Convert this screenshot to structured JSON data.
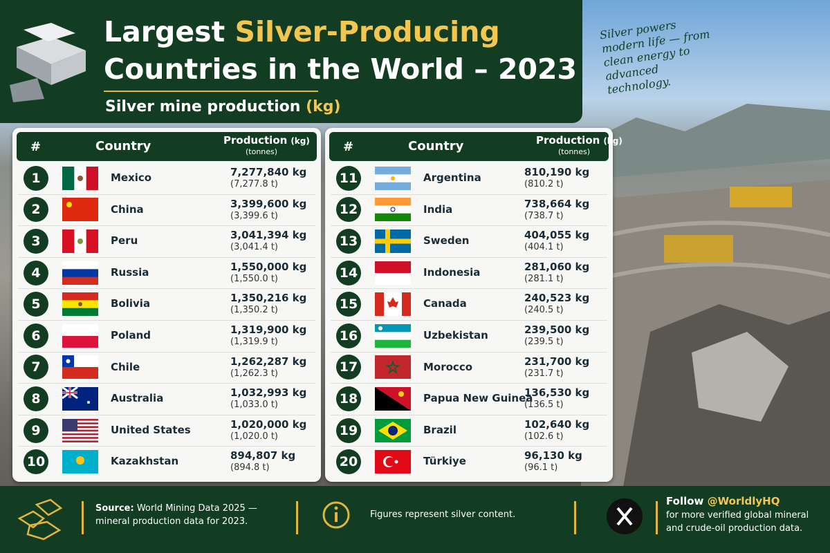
{
  "header": {
    "title_start": "Largest ",
    "title_highlight": "Silver-Producing",
    "title_end": "Countries in the World – 2023",
    "subtitle": "Silver mine production ",
    "subtitle_unit": "(kg)",
    "quote": "Silver powers modern life — from clean energy to advanced technology."
  },
  "tables": [
    {
      "header": {
        "rank": "#",
        "country": "Country",
        "production": "Production",
        "unit": "(kg)",
        "sub": "(tonnes)"
      },
      "rows": [
        {
          "rank": "1",
          "country": "Mexico",
          "kg": "7,277,840 kg",
          "tonnes": "(7,277.8 t)"
        },
        {
          "rank": "2",
          "country": "China",
          "kg": "3,399,600 kg",
          "tonnes": "(3,399.6 t)"
        },
        {
          "rank": "3",
          "country": "Peru",
          "kg": "3,041,394 kg",
          "tonnes": "(3,041.4 t)"
        },
        {
          "rank": "4",
          "country": "Russia",
          "kg": "1,550,000 kg",
          "tonnes": "(1,550.0 t)"
        },
        {
          "rank": "5",
          "country": "Bolivia",
          "kg": "1,350,216 kg",
          "tonnes": "(1,350.2 t)"
        },
        {
          "rank": "6",
          "country": "Poland",
          "kg": "1,319,900 kg",
          "tonnes": "(1,319.9 t)"
        },
        {
          "rank": "7",
          "country": "Chile",
          "kg": "1,262,287 kg",
          "tonnes": "(1,262.3 t)"
        },
        {
          "rank": "8",
          "country": "Australia",
          "kg": "1,032,993 kg",
          "tonnes": "(1,033.0 t)"
        },
        {
          "rank": "9",
          "country": "United States",
          "kg": "1,020,000 kg",
          "tonnes": "(1,020.0 t)"
        },
        {
          "rank": "10",
          "country": "Kazakhstan",
          "kg": "894,807 kg",
          "tonnes": "(894.8 t)"
        }
      ]
    },
    {
      "header": {
        "rank": "#",
        "country": "Country",
        "production": "Production",
        "unit": "(kg)",
        "sub": "(tonnes)"
      },
      "rows": [
        {
          "rank": "11",
          "country": "Argentina",
          "kg": "810,190 kg",
          "tonnes": "(810.2 t)"
        },
        {
          "rank": "12",
          "country": "India",
          "kg": "738,664 kg",
          "tonnes": "(738.7 t)"
        },
        {
          "rank": "13",
          "country": "Sweden",
          "kg": "404,055 kg",
          "tonnes": "(404.1 t)"
        },
        {
          "rank": "14",
          "country": "Indonesia",
          "kg": "281,060 kg",
          "tonnes": "(281.1 t)"
        },
        {
          "rank": "15",
          "country": "Canada",
          "kg": "240,523 kg",
          "tonnes": "(240.5 t)"
        },
        {
          "rank": "16",
          "country": "Uzbekistan",
          "kg": "239,500 kg",
          "tonnes": "(239.5 t)"
        },
        {
          "rank": "17",
          "country": "Morocco",
          "kg": "231,700 kg",
          "tonnes": "(231.7 t)"
        },
        {
          "rank": "18",
          "country": "Papua New Guinea",
          "kg": "136,530 kg",
          "tonnes": "(136.5 t)"
        },
        {
          "rank": "19",
          "country": "Brazil",
          "kg": "102,640 kg",
          "tonnes": "(102.6 t)"
        },
        {
          "rank": "20",
          "country": "Türkiye",
          "kg": "96,130 kg",
          "tonnes": "(96.1 t)"
        }
      ]
    }
  ],
  "footer": {
    "source_label": "Source:",
    "source_text": "World Mining Data 2025 — mineral production data for 2023.",
    "note": "Figures represent silver content.",
    "follow": "Follow ",
    "handle": "@WorldlyHQ",
    "follow_text": "for more verified global mineral and crude-oil production data."
  }
}
